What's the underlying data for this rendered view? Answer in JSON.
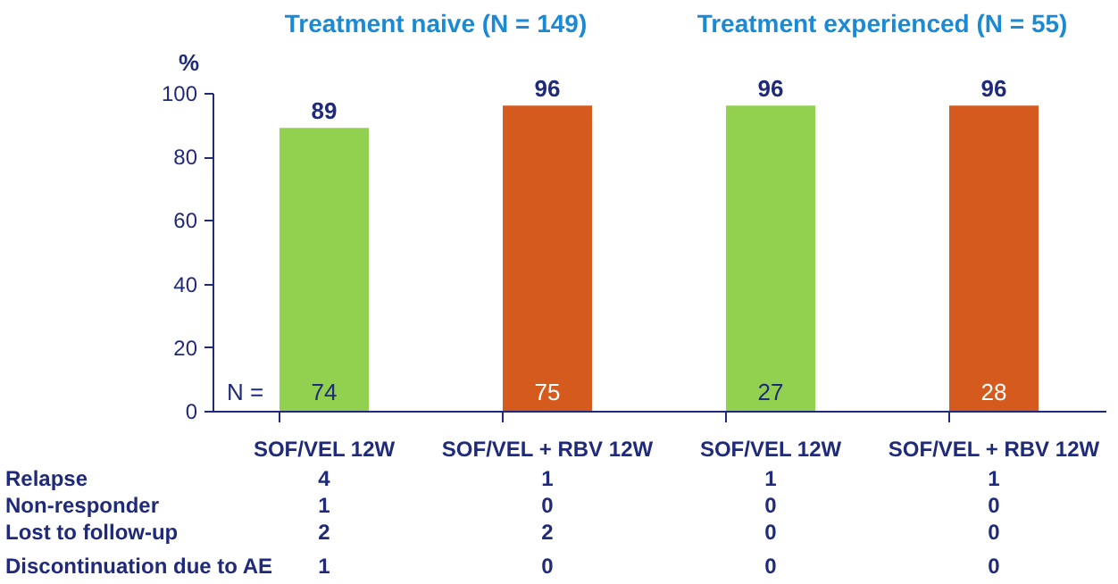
{
  "chart_data": {
    "type": "bar",
    "ylabel": "%",
    "categories": [
      "SOF/VEL 12W",
      "SOF/VEL + RBV 12W",
      "SOF/VEL 12W",
      "SOF/VEL + RBV 12W"
    ],
    "values": [
      89,
      96,
      96,
      96
    ],
    "colors": [
      "#92d050",
      "#d55a1e",
      "#92d050",
      "#d55a1e"
    ],
    "ylim": [
      0,
      100
    ],
    "yticks": [
      0,
      20,
      40,
      60,
      80,
      100
    ],
    "data_labels": true,
    "grid": false,
    "annotations": [
      "Treatment naive (N = 149)",
      "Treatment experienced (N = 55)",
      "N =",
      "74",
      "75",
      "27",
      "28",
      "Relapse",
      "4",
      "1",
      "1",
      "1",
      "Non-responder",
      "1",
      "0",
      "0",
      "0",
      "Lost to follow-up",
      "2",
      "2",
      "0",
      "0",
      "Discontinuation due to AE",
      "1",
      "0",
      "0",
      "0"
    ]
  }
}
